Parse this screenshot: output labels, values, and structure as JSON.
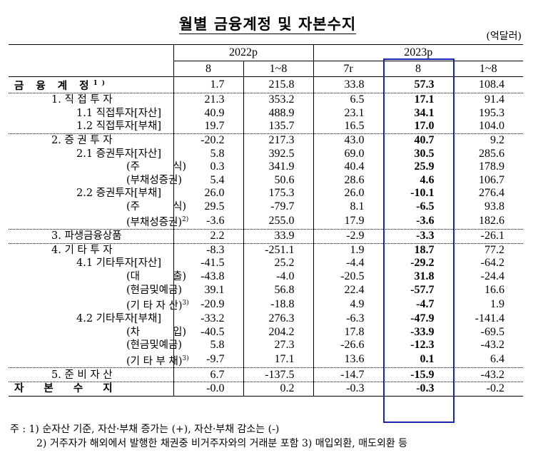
{
  "title": "월별 금융계정 및 자본수지",
  "unit": "(억달러)",
  "highlight_color": "#1a22b8",
  "header": {
    "year1": "2022p",
    "year2": "2023p",
    "cols": [
      "8",
      "1~8",
      "7r",
      "8",
      "1~8"
    ]
  },
  "rows": [
    {
      "label": "금 융 계 정",
      "sup": "1)",
      "indent": 0,
      "values": [
        "1.7",
        "215.8",
        "33.8",
        "57.3",
        "108.4"
      ]
    },
    {
      "label": "1. 직 접 투 자",
      "indent": 1,
      "values": [
        "21.3",
        "353.2",
        "6.5",
        "17.1",
        "91.4"
      ]
    },
    {
      "label": "1.1 직접투자[자산]",
      "indent": 2,
      "values": [
        "40.9",
        "488.9",
        "23.1",
        "34.1",
        "195.3"
      ]
    },
    {
      "label": "1.2 직접투자[부채]",
      "indent": 2,
      "values": [
        "19.7",
        "135.7",
        "16.5",
        "17.0",
        "104.0"
      ]
    },
    {
      "label": "2. 증 권 투 자",
      "indent": 1,
      "values": [
        "-20.2",
        "217.3",
        "43.0",
        "40.7",
        "9.2"
      ]
    },
    {
      "label": "2.1 증권투자[자산]",
      "indent": 2,
      "values": [
        "5.8",
        "392.5",
        "69.0",
        "30.5",
        "285.6"
      ]
    },
    {
      "label": "(주          식)",
      "indent": 3,
      "values": [
        "0.3",
        "341.9",
        "40.4",
        "25.9",
        "178.9"
      ]
    },
    {
      "label": "(부채성증권)",
      "indent": 3,
      "values": [
        "5.4",
        "50.6",
        "28.6",
        "4.6",
        "106.7"
      ]
    },
    {
      "label": "2.2 증권투자[부채]",
      "indent": 2,
      "values": [
        "26.0",
        "175.3",
        "26.0",
        "-10.1",
        "276.4"
      ]
    },
    {
      "label": "(주          식)",
      "indent": 3,
      "values": [
        "29.5",
        "-79.7",
        "8.1",
        "-6.5",
        "93.8"
      ]
    },
    {
      "label": "(부채성증권)",
      "sup": "2)",
      "indent": 3,
      "values": [
        "-3.6",
        "255.0",
        "17.9",
        "-3.6",
        "182.6"
      ]
    },
    {
      "label": "3. 파생금융상품",
      "indent": 1,
      "values": [
        "2.2",
        "33.9",
        "-2.9",
        "-3.3",
        "-26.1"
      ]
    },
    {
      "label": "4. 기 타 투 자",
      "indent": 1,
      "values": [
        "-8.3",
        "-251.1",
        "1.9",
        "18.7",
        "77.2"
      ]
    },
    {
      "label": "4.1 기타투자[자산]",
      "indent": 2,
      "values": [
        "-41.5",
        "25.2",
        "-4.4",
        "-29.2",
        "-64.2"
      ]
    },
    {
      "label": "(대          출)",
      "indent": 3,
      "values": [
        "-43.8",
        "-4.0",
        "-20.5",
        "31.8",
        "-24.4"
      ]
    },
    {
      "label": "(현금및예금)",
      "indent": 3,
      "values": [
        "39.1",
        "56.8",
        "22.4",
        "-57.7",
        "16.6"
      ]
    },
    {
      "label": "(기 타 자 산)",
      "sup": "3)",
      "indent": 3,
      "values": [
        "-20.9",
        "-18.8",
        "4.9",
        "-4.7",
        "1.9"
      ]
    },
    {
      "label": "4.2 기타투자[부채]",
      "indent": 2,
      "values": [
        "-33.2",
        "276.3",
        "-6.3",
        "-47.9",
        "-141.4"
      ]
    },
    {
      "label": "(차          입)",
      "indent": 3,
      "values": [
        "-40.5",
        "204.2",
        "17.8",
        "-33.9",
        "-69.5"
      ]
    },
    {
      "label": "(현금및예금)",
      "indent": 3,
      "values": [
        "5.8",
        "27.3",
        "-26.6",
        "-12.3",
        "-43.2"
      ]
    },
    {
      "label": "(기 타 부 채)",
      "sup": "3)",
      "indent": 3,
      "values": [
        "-9.7",
        "17.1",
        "13.6",
        "0.1",
        "6.4"
      ]
    },
    {
      "label": "5. 준 비 자 산",
      "indent": 1,
      "values": [
        "6.7",
        "-137.5",
        "-14.7",
        "-15.9",
        "-43.2"
      ]
    },
    {
      "label": "자  본  수  지",
      "indent": 0,
      "values": [
        "-0.0",
        "0.2",
        "-0.3",
        "-0.3",
        "-0.2"
      ]
    }
  ],
  "notes": [
    "주 : 1) 순자산 기준, 자산·부채 증가는 (+), 자산·부채 감소는 (-)",
    "2) 거주자가 해외에서 발행한 채권중 비거주자와의 거래분 포함   3) 매입외환, 매도외환 등"
  ]
}
